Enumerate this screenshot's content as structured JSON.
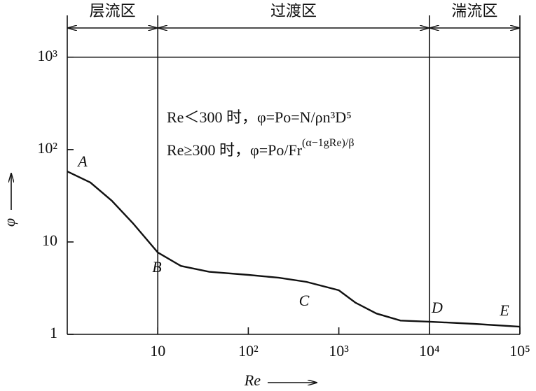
{
  "chart_data": {
    "type": "line",
    "x_label": "Re",
    "y_label": "φ",
    "x_log": true,
    "y_log": true,
    "xlim": [
      1,
      100000
    ],
    "ylim": [
      1,
      2000
    ],
    "xticks": [
      {
        "value": 10,
        "label": "10"
      },
      {
        "value": 100,
        "label": "10²"
      },
      {
        "value": 1000,
        "label": "10³"
      },
      {
        "value": 10000,
        "label": "10⁴"
      },
      {
        "value": 100000,
        "label": "10⁵"
      }
    ],
    "yticks": [
      1,
      10,
      {
        "value": 100,
        "label": "10²"
      },
      {
        "value": 1000,
        "label": "10³"
      }
    ],
    "hlines": [
      1000
    ],
    "boundaries": [
      10,
      10000
    ],
    "regions": [
      "层流区",
      "过渡区",
      "湍流区"
    ],
    "formulas": [
      "Re＜300 时，φ=Po=N/ρn³D⁵",
      "Re≥300 时，φ=Po/Fr",
      "(α−1gRe)/β"
    ],
    "point_labels": [
      "A",
      "B",
      "C",
      "D",
      "E"
    ],
    "series": [
      {
        "color": "#111111",
        "x": [
          1,
          1.8,
          3.1,
          5.3,
          10,
          18,
          37,
          100,
          218,
          440,
          1000,
          1530,
          2600,
          4800,
          10000,
          31000,
          100000
        ],
        "values": [
          58,
          44,
          28,
          16,
          7.7,
          5.5,
          4.75,
          4.4,
          4.1,
          3.7,
          3.0,
          2.2,
          1.68,
          1.41,
          1.37,
          1.3,
          1.21
        ]
      }
    ]
  }
}
